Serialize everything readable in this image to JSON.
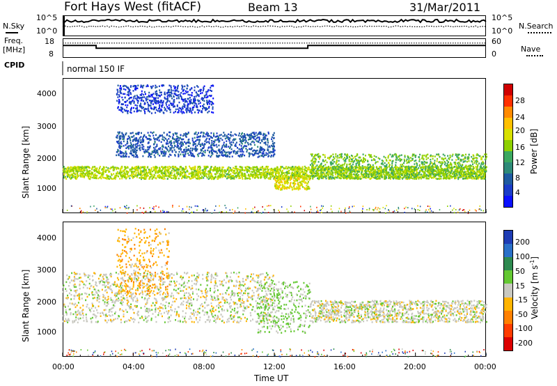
{
  "header": {
    "site": "Fort Hays West (fitACF)",
    "beam": "Beam 13",
    "date": "31/Mar/2011"
  },
  "noise_panel": {
    "left_label": "N.Sky",
    "left_ticks": [
      "10^5",
      "10^0"
    ],
    "right_ticks": [
      "10^5",
      "10^0"
    ],
    "right_label": "N.Search"
  },
  "freq_panel": {
    "left_label_1": "Freq.",
    "left_label_2": "[MHz]",
    "left_ticks": [
      "18",
      "8"
    ],
    "right_ticks": [
      "60",
      "0"
    ],
    "right_label": "Nave"
  },
  "cpid_panel": {
    "label": "CPID",
    "program": "normal 150 IF"
  },
  "power_panel": {
    "ylabel": "Slant Range [km]",
    "yticks": [
      "4000",
      "3000",
      "2000",
      "1000"
    ],
    "colorbar_label": "Power [dB]",
    "colorbar_ticks": [
      "28",
      "24",
      "20",
      "16",
      "12",
      "8",
      "4"
    ],
    "colors": [
      "#d00000",
      "#ff3000",
      "#ff8a00",
      "#ffc000",
      "#d8e000",
      "#8ed000",
      "#3ca860",
      "#2e8a78",
      "#1e5aa0",
      "#1a3cc8",
      "#0a10ff"
    ]
  },
  "velocity_panel": {
    "ylabel": "Slant Range [km]",
    "yticks": [
      "4000",
      "3000",
      "2000",
      "1000"
    ],
    "colorbar_label": "Velocity [m s",
    "colorbar_label_sup": "-1",
    "colorbar_label_end": "]",
    "colorbar_ticks": [
      "200",
      "100",
      "50",
      "15",
      "-15",
      "-50",
      "-100",
      "-200"
    ],
    "colors": [
      "#1e3cb4",
      "#2a70c8",
      "#2e8a50",
      "#64c832",
      "#c8c8c0",
      "#ffb400",
      "#ff8000",
      "#ff3c00",
      "#dc0000"
    ]
  },
  "xaxis": {
    "ticks": [
      "00:00",
      "04:00",
      "08:00",
      "12:00",
      "16:00",
      "20:00",
      "00:00"
    ],
    "label": "Time UT"
  },
  "chart_data": {
    "type": "heatmap",
    "title": "Fort Hays West (fitACF)  Beam 13  31/Mar/2011",
    "xlabel": "Time UT",
    "ylabel": "Slant Range [km]",
    "xlim": [
      0,
      24
    ],
    "ylim": [
      180,
      4500
    ],
    "freq_mhz": {
      "segments": [
        {
          "start_hour": 0,
          "end_hour": 1.9,
          "value": 14.5
        },
        {
          "start_hour": 1.9,
          "end_hour": 13.9,
          "value": 12.3
        },
        {
          "start_hour": 13.9,
          "end_hour": 24,
          "value": 14.5
        }
      ]
    },
    "nave": 48,
    "power_db": {
      "range": [
        0,
        30
      ],
      "features": [
        {
          "time_hour": [
            0,
            24
          ],
          "range_km": [
            1300,
            1700
          ],
          "typical_db": 16
        },
        {
          "time_hour": [
            3,
            12
          ],
          "range_km": [
            2000,
            2800
          ],
          "typical_db": 6
        },
        {
          "time_hour": [
            3,
            8.5
          ],
          "range_km": [
            3400,
            4300
          ],
          "typical_db": 4
        },
        {
          "time_hour": [
            12,
            14
          ],
          "range_km": [
            950,
            1400
          ],
          "typical_db": 18
        },
        {
          "time_hour": [
            14,
            24
          ],
          "range_km": [
            1300,
            2100
          ],
          "typical_db": 14
        }
      ]
    },
    "velocity_ms": {
      "range": [
        -200,
        200
      ],
      "features": [
        {
          "time_hour": [
            0,
            12
          ],
          "range_km": [
            1300,
            2900
          ],
          "typical_ms": 0
        },
        {
          "time_hour": [
            3,
            6
          ],
          "range_km": [
            2200,
            4300
          ],
          "typical_ms": -50
        },
        {
          "time_hour": [
            11,
            14
          ],
          "range_km": [
            950,
            2600
          ],
          "typical_ms": 30
        },
        {
          "time_hour": [
            14,
            24
          ],
          "range_km": [
            1300,
            2000
          ],
          "typical_ms": 0
        }
      ]
    }
  }
}
